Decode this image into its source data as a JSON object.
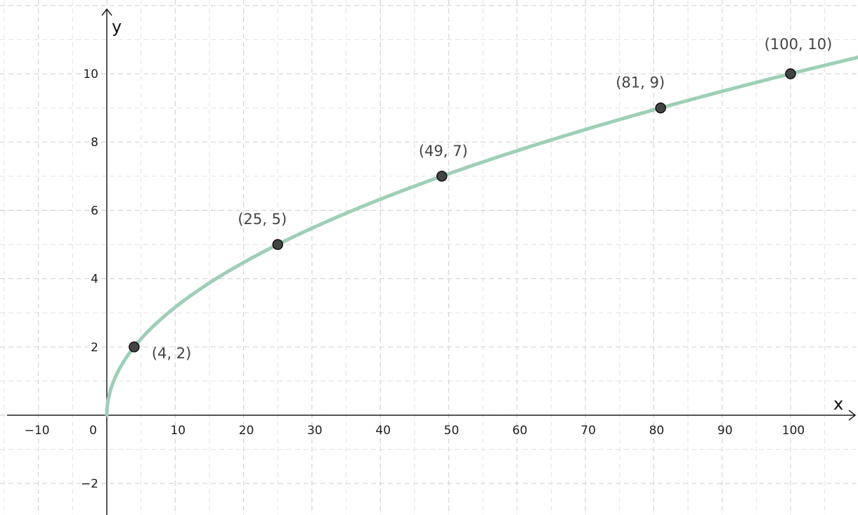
{
  "chart_data": {
    "type": "line",
    "function": "y = sqrt(x)",
    "xlabel": "x",
    "ylabel": "y",
    "xlim": [
      -15,
      110
    ],
    "ylim": [
      -3,
      11.8
    ],
    "grid": true,
    "x_ticks": [
      -10,
      0,
      10,
      20,
      30,
      40,
      50,
      60,
      70,
      80,
      90,
      100
    ],
    "x_tick_labels": [
      "−10",
      "0",
      "10",
      "20",
      "30",
      "40",
      "50",
      "60",
      "70",
      "80",
      "90",
      "100"
    ],
    "y_ticks": [
      -2,
      2,
      4,
      6,
      8,
      10
    ],
    "y_tick_labels": [
      "−2",
      "2",
      "4",
      "6",
      "8",
      "10"
    ],
    "series": [
      {
        "x": [
          0,
          1,
          4,
          9,
          16,
          25,
          36,
          49,
          64,
          81,
          100,
          110
        ],
        "y": [
          0,
          1,
          2,
          3,
          4,
          5,
          6,
          7,
          8,
          9,
          10,
          10.49
        ],
        "color": "#9ecfb6"
      }
    ],
    "points": [
      {
        "x": 4,
        "y": 2,
        "label": "(4, 2)"
      },
      {
        "x": 25,
        "y": 5,
        "label": "(25, 5)"
      },
      {
        "x": 49,
        "y": 7,
        "label": "(49, 7)"
      },
      {
        "x": 81,
        "y": 9,
        "label": "(81, 9)"
      },
      {
        "x": 100,
        "y": 10,
        "label": "(100, 10)"
      }
    ],
    "point_color": "#444444"
  }
}
